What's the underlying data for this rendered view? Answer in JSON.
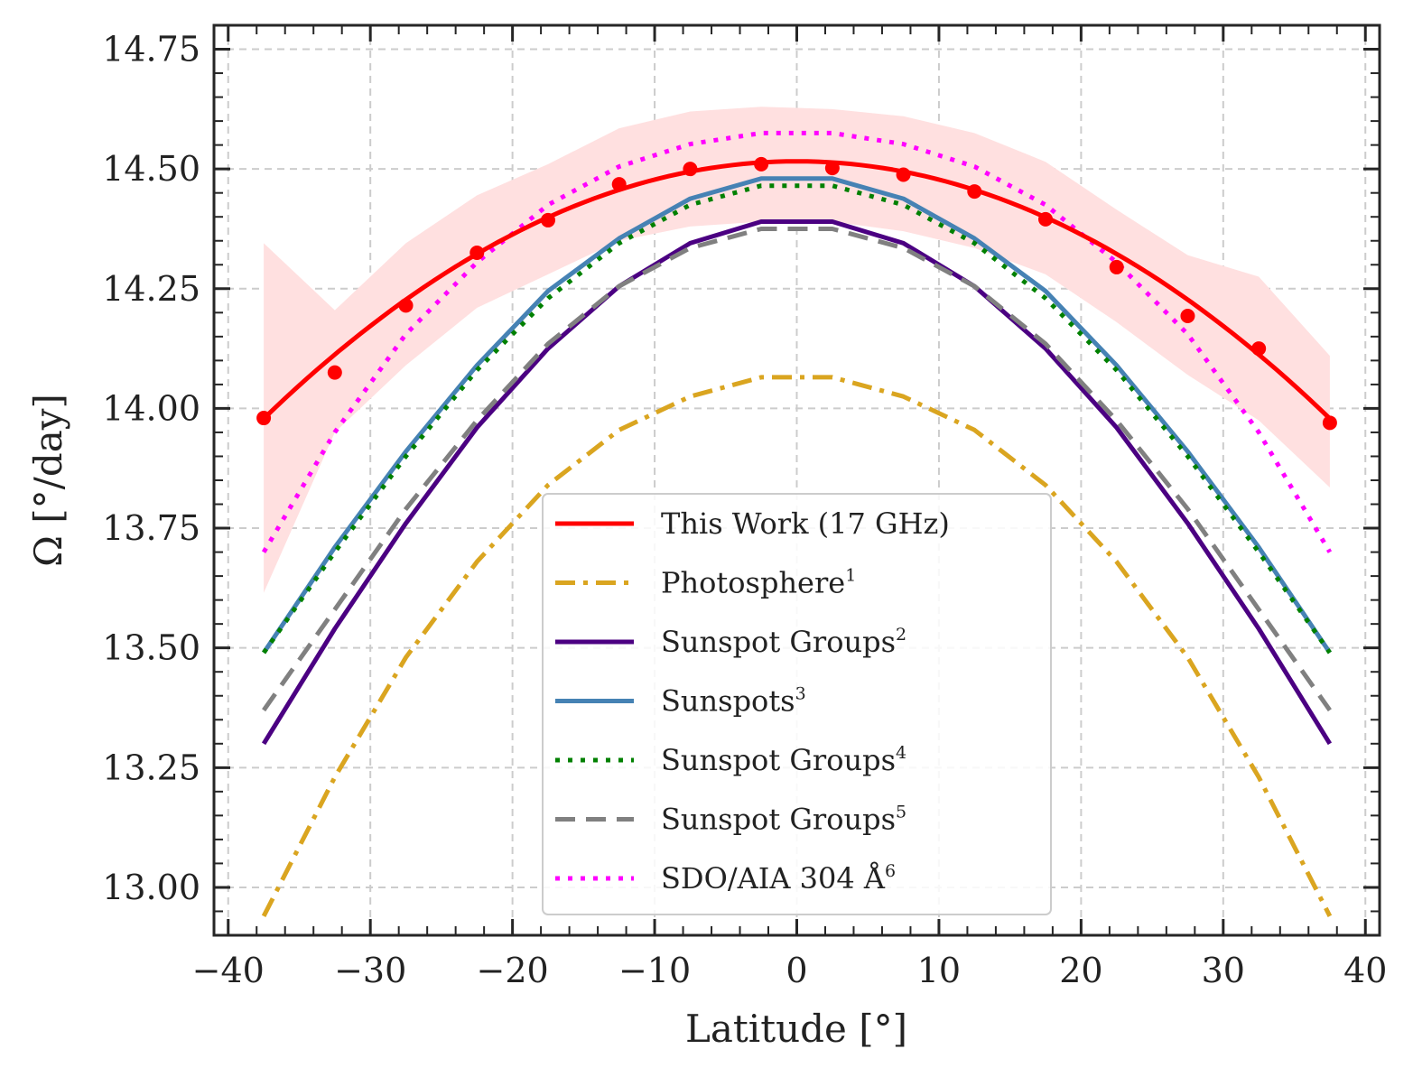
{
  "chart_data": {
    "type": "line",
    "title": "",
    "xlabel": "Latitude  [°]",
    "ylabel": "Ω  [°/day]",
    "xlim": [
      -41,
      41
    ],
    "ylim": [
      12.9,
      14.8
    ],
    "grid": true,
    "legend_position": "lower-center",
    "xticks": [
      -40,
      -30,
      -20,
      -10,
      0,
      10,
      20,
      30,
      40
    ],
    "xtick_labels": [
      "−40",
      "−30",
      "−20",
      "−10",
      "0",
      "10",
      "20",
      "30",
      "40"
    ],
    "yticks": [
      13.0,
      13.25,
      13.5,
      13.75,
      14.0,
      14.25,
      14.5,
      14.75
    ],
    "ytick_labels": [
      "13.00",
      "13.25",
      "13.50",
      "13.75",
      "14.00",
      "14.25",
      "14.50",
      "14.75"
    ],
    "x": [
      -37.5,
      -32.5,
      -27.5,
      -22.5,
      -17.5,
      -12.5,
      -7.5,
      -2.5,
      2.5,
      7.5,
      12.5,
      17.5,
      22.5,
      27.5,
      32.5,
      37.5
    ],
    "observed_points": {
      "name": "This Work (17 GHz) measurements",
      "color": "#ff0000",
      "values": [
        13.98,
        14.075,
        14.215,
        14.325,
        14.393,
        14.468,
        14.5,
        14.51,
        14.502,
        14.488,
        14.453,
        14.395,
        14.295,
        14.193,
        14.125,
        13.97
      ]
    },
    "uncertainty_band": {
      "color": "#ffe0e0",
      "x": [
        -37.5,
        -32.5,
        -27.5,
        -22.5,
        -17.5,
        -12.5,
        -7.5,
        -2.5,
        2.5,
        7.5,
        12.5,
        17.5,
        22.5,
        27.5,
        32.5,
        37.5
      ],
      "upper": [
        14.345,
        14.205,
        14.345,
        14.445,
        14.51,
        14.585,
        14.62,
        14.63,
        14.625,
        14.61,
        14.575,
        14.515,
        14.415,
        14.32,
        14.275,
        14.11
      ],
      "lower": [
        13.615,
        13.95,
        14.09,
        14.21,
        14.28,
        14.35,
        14.38,
        14.39,
        14.39,
        14.37,
        14.335,
        14.28,
        14.18,
        14.07,
        13.975,
        13.835
      ]
    },
    "series": [
      {
        "name": "This Work  (17  GHz)",
        "superscript": "",
        "style": "solid",
        "color": "#ff0000",
        "values": [
          13.978,
          14.094,
          14.204,
          14.302,
          14.383,
          14.447,
          14.492,
          14.516,
          14.516,
          14.492,
          14.447,
          14.383,
          14.302,
          14.204,
          14.094,
          13.978
        ]
      },
      {
        "name": "Photosphere",
        "superscript": "1",
        "style": "dashdot",
        "color": "#daa520",
        "values": [
          12.94,
          13.23,
          13.48,
          13.68,
          13.84,
          13.955,
          14.025,
          14.065,
          14.065,
          14.025,
          13.955,
          13.84,
          13.68,
          13.48,
          13.23,
          12.94
        ]
      },
      {
        "name": "Sunspot  Groups",
        "superscript": "2",
        "style": "solid",
        "color": "#4b0082",
        "values": [
          13.3,
          13.54,
          13.76,
          13.96,
          14.125,
          14.255,
          14.345,
          14.39,
          14.39,
          14.345,
          14.255,
          14.125,
          13.96,
          13.76,
          13.54,
          13.3
        ]
      },
      {
        "name": "Sunspots",
        "superscript": "3",
        "style": "solid",
        "color": "#4682b4",
        "values": [
          13.49,
          13.71,
          13.91,
          14.09,
          14.245,
          14.355,
          14.438,
          14.48,
          14.48,
          14.438,
          14.355,
          14.245,
          14.09,
          13.91,
          13.71,
          13.49
        ]
      },
      {
        "name": "Sunspot  Groups",
        "superscript": "4",
        "style": "dotted",
        "color": "#008000",
        "values": [
          13.49,
          13.7,
          13.9,
          14.08,
          14.23,
          14.345,
          14.425,
          14.465,
          14.465,
          14.425,
          14.345,
          14.23,
          14.08,
          13.9,
          13.7,
          13.49
        ]
      },
      {
        "name": "Sunspot  Groups",
        "superscript": "5",
        "style": "dashed",
        "color": "#808080",
        "values": [
          13.37,
          13.58,
          13.79,
          13.975,
          14.135,
          14.255,
          14.335,
          14.375,
          14.375,
          14.335,
          14.255,
          14.135,
          13.975,
          13.79,
          13.58,
          13.37
        ]
      },
      {
        "name": "SDO/AIA  304  Å",
        "superscript": "6",
        "style": "dotted",
        "color": "#ff00ff",
        "values": [
          13.7,
          13.95,
          14.155,
          14.305,
          14.425,
          14.505,
          14.552,
          14.575,
          14.575,
          14.552,
          14.505,
          14.425,
          14.305,
          14.155,
          13.95,
          13.7
        ]
      }
    ]
  }
}
